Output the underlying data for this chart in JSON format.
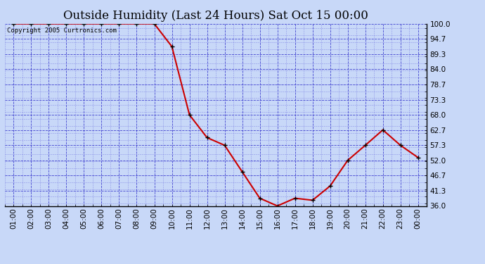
{
  "title": "Outside Humidity (Last 24 Hours) Sat Oct 15 00:00",
  "copyright": "Copyright 2005 Curtronics.com",
  "x_labels": [
    "01:00",
    "02:00",
    "03:00",
    "04:00",
    "05:00",
    "06:00",
    "07:00",
    "08:00",
    "09:00",
    "10:00",
    "11:00",
    "12:00",
    "13:00",
    "14:00",
    "15:00",
    "16:00",
    "17:00",
    "18:00",
    "19:00",
    "20:00",
    "21:00",
    "22:00",
    "23:00",
    "00:00"
  ],
  "x_values": [
    1,
    2,
    3,
    4,
    5,
    6,
    7,
    8,
    9,
    10,
    11,
    12,
    13,
    14,
    15,
    16,
    17,
    18,
    19,
    20,
    21,
    22,
    23,
    24
  ],
  "y_values": [
    100.0,
    100.0,
    100.0,
    100.0,
    100.0,
    100.0,
    100.0,
    100.0,
    100.0,
    92.0,
    68.0,
    60.0,
    57.3,
    48.0,
    38.7,
    36.0,
    38.7,
    38.0,
    43.0,
    52.0,
    57.3,
    62.7,
    57.3,
    53.0
  ],
  "ylim": [
    36.0,
    100.0
  ],
  "yticks": [
    36.0,
    41.3,
    46.7,
    52.0,
    57.3,
    62.7,
    68.0,
    73.3,
    78.7,
    84.0,
    89.3,
    94.7,
    100.0
  ],
  "line_color": "#cc0000",
  "marker": "+",
  "marker_color": "#000000",
  "bg_color": "#c8d8f8",
  "plot_bg_color": "#c8d8f8",
  "grid_color": "#3333cc",
  "grid_minor_color": "#6666dd",
  "title_fontsize": 12,
  "tick_fontsize": 7.5,
  "copyright_fontsize": 6.5
}
